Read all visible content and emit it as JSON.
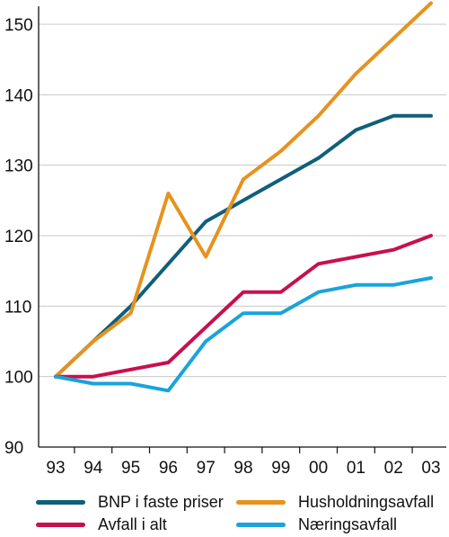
{
  "chart_data": {
    "type": "line",
    "categories": [
      "93",
      "94",
      "95",
      "96",
      "97",
      "98",
      "99",
      "00",
      "01",
      "02",
      "03"
    ],
    "ylim": [
      90,
      150
    ],
    "yticks": [
      90,
      100,
      110,
      120,
      130,
      140,
      150
    ],
    "grid": "horizontal",
    "legend_position": "bottom",
    "series": [
      {
        "name": "BNP i faste priser",
        "color": "#0f5f7a",
        "values": [
          100,
          105,
          110,
          116,
          122,
          125,
          128,
          131,
          135,
          137,
          137
        ]
      },
      {
        "name": "Husholdningsavfall",
        "color": "#e6921e",
        "values": [
          100,
          105,
          109,
          126,
          117,
          128,
          132,
          137,
          143,
          148,
          153
        ]
      },
      {
        "name": "Avfall i alt",
        "color": "#c8104e",
        "values": [
          100,
          100,
          101,
          102,
          107,
          112,
          112,
          116,
          117,
          118,
          120
        ]
      },
      {
        "name": "Næringsavfall",
        "color": "#1aa3dc",
        "values": [
          100,
          99,
          99,
          98,
          105,
          109,
          109,
          112,
          113,
          113,
          114
        ]
      }
    ]
  }
}
